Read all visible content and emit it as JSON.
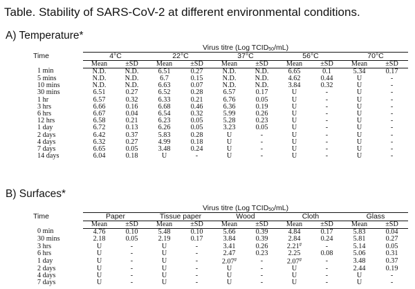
{
  "title": "Table. Stability of SARS-CoV-2 at different environmental conditions.",
  "section_a": {
    "heading": "A) Temperature*",
    "time_label": "Time",
    "titre_prefix": "Virus titre (Log TCID",
    "titre_sub": "50",
    "titre_suffix": "/mL)",
    "mean_label": "Mean",
    "sd_label": "±SD",
    "conditions": [
      "4°C",
      "22°C",
      "37°C",
      "56°C",
      "70°C"
    ],
    "rows": [
      {
        "time": "1 min",
        "values": [
          "N.D.",
          "N.D.",
          "6.51",
          "0.27",
          "N.D.",
          "N.D.",
          "6.65",
          "0.1",
          "5.34",
          "0.17"
        ]
      },
      {
        "time": "5 mins",
        "values": [
          "N.D.",
          "N.D.",
          "6.7",
          "0.15",
          "N.D.",
          "N.D.",
          "4.62",
          "0.44",
          "U",
          "-"
        ]
      },
      {
        "time": "10 mins",
        "values": [
          "N.D.",
          "N.D.",
          "6.63",
          "0.07",
          "N.D.",
          "N.D.",
          "3.84",
          "0.32",
          "U",
          "-"
        ]
      },
      {
        "time": "30 mins",
        "values": [
          "6.51",
          "0.27",
          "6.52",
          "0.28",
          "6.57",
          "0.17",
          "U",
          "-",
          "U",
          "-"
        ]
      },
      {
        "time": "1 hr",
        "values": [
          "6.57",
          "0.32",
          "6.33",
          "0.21",
          "6.76",
          "0.05",
          "U",
          "-",
          "U",
          "-"
        ]
      },
      {
        "time": "3 hrs",
        "values": [
          "6.66",
          "0.16",
          "6.68",
          "0.46",
          "6.36",
          "0.19",
          "U",
          "-",
          "U",
          "-"
        ]
      },
      {
        "time": "6 hrs",
        "values": [
          "6.67",
          "0.04",
          "6.54",
          "0.32",
          "5.99",
          "0.26",
          "U",
          "-",
          "U",
          "-"
        ]
      },
      {
        "time": "12 hrs",
        "values": [
          "6.58",
          "0.21",
          "6.23",
          "0.05",
          "5.28",
          "0.23",
          "U",
          "-",
          "U",
          "-"
        ]
      },
      {
        "time": "1 day",
        "values": [
          "6.72",
          "0.13",
          "6.26",
          "0.05",
          "3.23",
          "0.05",
          "U",
          "-",
          "U",
          "-"
        ]
      },
      {
        "time": "2 days",
        "values": [
          "6.42",
          "0.37",
          "5.83",
          "0.28",
          "U",
          "-",
          "U",
          "-",
          "U",
          "-"
        ]
      },
      {
        "time": "4 days",
        "values": [
          "6.32",
          "0.27",
          "4.99",
          "0.18",
          "U",
          "-",
          "U",
          "-",
          "U",
          "-"
        ]
      },
      {
        "time": "7 days",
        "values": [
          "6.65",
          "0.05",
          "3.48",
          "0.24",
          "U",
          "-",
          "U",
          "-",
          "U",
          "-"
        ]
      },
      {
        "time": "14 days",
        "values": [
          "6.04",
          "0.18",
          "U",
          "-",
          "U",
          "-",
          "U",
          "-",
          "U",
          "-"
        ]
      }
    ]
  },
  "section_b": {
    "heading": "B) Surfaces*",
    "time_label": "Time",
    "titre_prefix": "Virus titre (Log TCID",
    "titre_sub": "50",
    "titre_suffix": "/mL)",
    "mean_label": "Mean",
    "sd_label": "±SD",
    "conditions": [
      "Paper",
      "Tissue paper",
      "Wood",
      "Cloth",
      "Glass"
    ],
    "rows": [
      {
        "time": "0 min",
        "values": [
          "4.76",
          "0.10",
          "5.48",
          "0.10",
          "5.66",
          "0.39",
          "4.84",
          "0.17",
          "5.83",
          "0.04"
        ]
      },
      {
        "time": "30 mins",
        "values": [
          "2.18",
          "0.05",
          "2.19",
          "0.17",
          "3.84",
          "0.39",
          "2.84",
          "0.24",
          "5.81",
          "0.27"
        ]
      },
      {
        "time": "3 hrs",
        "values": [
          "U",
          "-",
          "U",
          "-",
          "3.41",
          "0.26",
          "2.21#",
          "-",
          "5.14",
          "0.05"
        ]
      },
      {
        "time": "6 hrs",
        "values": [
          "U",
          "-",
          "U",
          "-",
          "2.47",
          "0.23",
          "2.25",
          "0.08",
          "5.06",
          "0.31"
        ]
      },
      {
        "time": "1 day",
        "values": [
          "U",
          "-",
          "U",
          "-",
          "2.07#",
          "-",
          "2.07#",
          "-",
          "3.48",
          "0.37"
        ]
      },
      {
        "time": "2 days",
        "values": [
          "U",
          "-",
          "U",
          "-",
          "U",
          "-",
          "U",
          "-",
          "2.44",
          "0.19"
        ]
      },
      {
        "time": "4 days",
        "values": [
          "U",
          "-",
          "U",
          "-",
          "U",
          "-",
          "U",
          "-",
          "U",
          "-"
        ]
      },
      {
        "time": "7 days",
        "values": [
          "U",
          "-",
          "U",
          "-",
          "U",
          "-",
          "U",
          "-",
          "U",
          "-"
        ]
      }
    ]
  }
}
